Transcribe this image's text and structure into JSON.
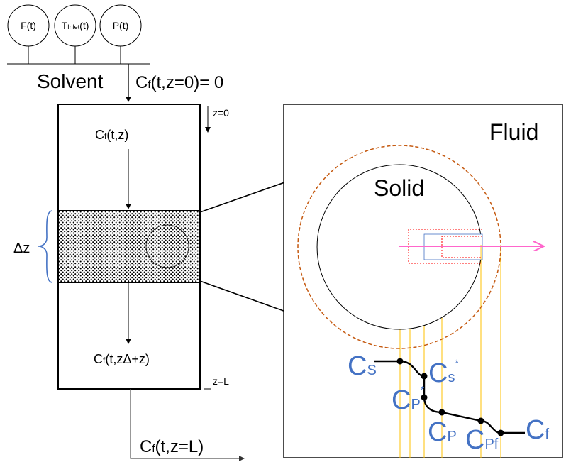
{
  "sensors": [
    {
      "label": "F(t)"
    },
    {
      "label_main": "T",
      "label_sub": "Inlet",
      "label_tail": "(t)"
    },
    {
      "label": "P(t)"
    }
  ],
  "inlet": {
    "solvent_label": "Solvent",
    "cf_main": "C",
    "cf_sub": "f",
    "cf_tail": "(t,z=0)= 0"
  },
  "column": {
    "z0_label": "z=0",
    "zL_label": "z=L",
    "delta_z_label": "Δz",
    "cf_top": {
      "main": "C",
      "sub": "f",
      "tail": "(t,z)"
    },
    "cf_bottom": {
      "main": "C",
      "sub": "f",
      "tail": "(t,zΔ+z)"
    },
    "outlet": {
      "main": "C",
      "sub": "f",
      "tail": "(t,z=L)"
    }
  },
  "zoom_panel": {
    "fluid_label": "Fluid",
    "solid_label": "Solid"
  },
  "profile": {
    "cs": {
      "main": "C",
      "sub": "S"
    },
    "cs_star": {
      "main": "C",
      "sub": "s",
      "sup": "*"
    },
    "cp_star": {
      "main": "C",
      "sub": "P",
      "sup": "*"
    },
    "cp": {
      "main": "C",
      "sub": "P"
    },
    "cpf": {
      "main": "C",
      "sub": "Pf"
    },
    "cf": {
      "main": "C",
      "sub": "f"
    }
  },
  "colors": {
    "accent_blue": "#4472C4",
    "film_orange": "#C55A11",
    "arrow_pink": "#FF66CC",
    "grid_yellow": "#FFC000",
    "pore_red": "#FF0000",
    "brace_blue": "#4472C4"
  }
}
